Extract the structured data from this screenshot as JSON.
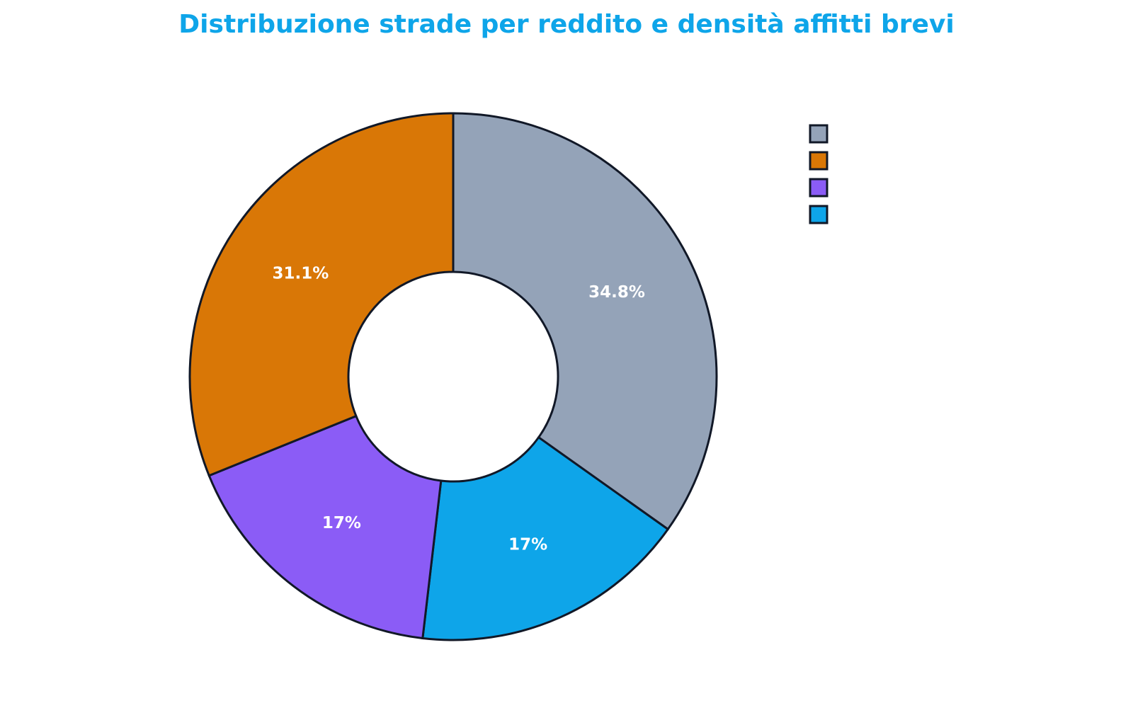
{
  "chart_data": {
    "type": "pie",
    "style": "donut",
    "title": "Distribuzione strade per reddito e densità affitti brevi",
    "slices": [
      {
        "name": "",
        "value": 34.8,
        "label": "34.8%",
        "color": "#94a3b8"
      },
      {
        "name": "",
        "value": 17.0,
        "label": "17%",
        "color": "#0ea5e9"
      },
      {
        "name": "",
        "value": 17.0,
        "label": "17%",
        "color": "#8b5cf6"
      },
      {
        "name": "",
        "value": 31.1,
        "label": "31.1%",
        "color": "#d97706"
      }
    ],
    "legend": {
      "placement": "top-right",
      "entries": [
        {
          "name": "",
          "color": "#94a3b8"
        },
        {
          "name": "",
          "color": "#d97706"
        },
        {
          "name": "",
          "color": "#8b5cf6"
        },
        {
          "name": "",
          "color": "#0ea5e9"
        }
      ]
    },
    "title_color": "#0ea5e9",
    "border_color": "#111827"
  }
}
